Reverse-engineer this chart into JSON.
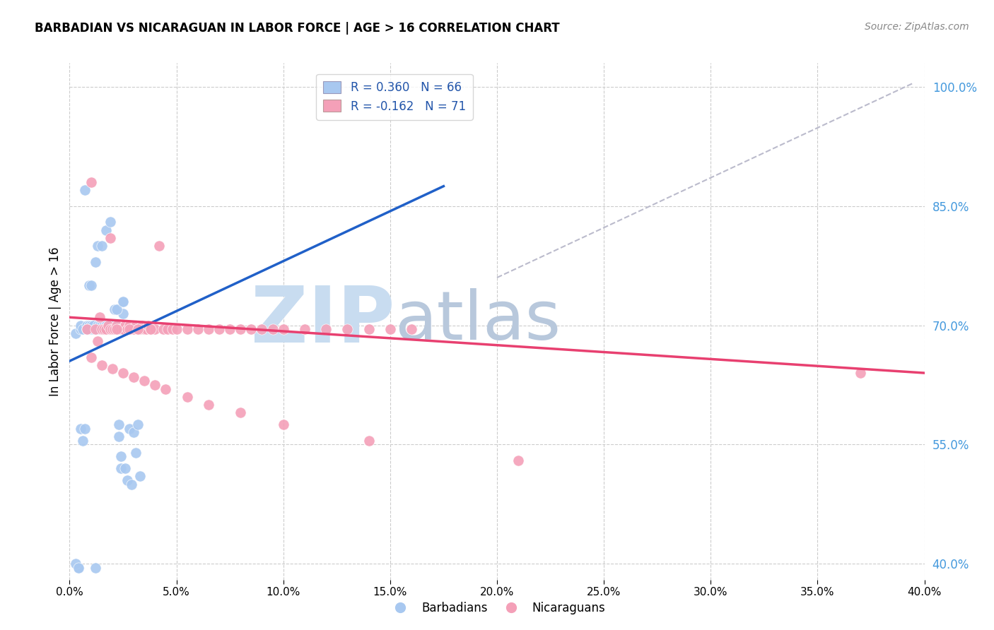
{
  "title": "BARBADIAN VS NICARAGUAN IN LABOR FORCE | AGE > 16 CORRELATION CHART",
  "source": "Source: ZipAtlas.com",
  "ylabel": "In Labor Force | Age > 16",
  "ylabel_ticks": [
    "100.0%",
    "85.0%",
    "70.0%",
    "55.0%",
    "40.0%"
  ],
  "ylabel_tick_vals": [
    1.0,
    0.85,
    0.7,
    0.55,
    0.4
  ],
  "xlim": [
    0.0,
    0.4
  ],
  "ylim": [
    0.38,
    1.03
  ],
  "legend_blue_label": "R = 0.360   N = 66",
  "legend_pink_label": "R = -0.162   N = 71",
  "barbadians_label": "Barbadians",
  "nicaraguans_label": "Nicaraguans",
  "blue_color": "#A8C8F0",
  "pink_color": "#F4A0B8",
  "blue_line_color": "#2060C8",
  "pink_line_color": "#E84070",
  "dashed_line_color": "#BBBBCC",
  "watermark_zip": "ZIP",
  "watermark_atlas": "atlas",
  "watermark_color_zip": "#C8DCF0",
  "watermark_color_atlas": "#B8C8DC",
  "bg_color": "#FFFFFF",
  "grid_color": "#CCCCCC",
  "blue_scatter_x": [
    0.003,
    0.004,
    0.005,
    0.005,
    0.006,
    0.007,
    0.008,
    0.008,
    0.009,
    0.009,
    0.01,
    0.01,
    0.011,
    0.011,
    0.012,
    0.012,
    0.013,
    0.013,
    0.014,
    0.014,
    0.015,
    0.015,
    0.016,
    0.016,
    0.017,
    0.017,
    0.018,
    0.018,
    0.019,
    0.019,
    0.02,
    0.02,
    0.021,
    0.021,
    0.022,
    0.022,
    0.023,
    0.023,
    0.024,
    0.024,
    0.025,
    0.025,
    0.026,
    0.027,
    0.028,
    0.029,
    0.03,
    0.031,
    0.032,
    0.033,
    0.003,
    0.004,
    0.005,
    0.006,
    0.007,
    0.008,
    0.009,
    0.01,
    0.012,
    0.013,
    0.015,
    0.017,
    0.019,
    0.021,
    0.022,
    0.025
  ],
  "blue_scatter_y": [
    0.69,
    0.395,
    0.695,
    0.7,
    0.695,
    0.87,
    0.7,
    0.695,
    0.695,
    0.7,
    0.695,
    0.7,
    0.695,
    0.7,
    0.695,
    0.395,
    0.7,
    0.695,
    0.695,
    0.7,
    0.7,
    0.695,
    0.7,
    0.695,
    0.7,
    0.695,
    0.7,
    0.695,
    0.7,
    0.695,
    0.7,
    0.695,
    0.7,
    0.695,
    0.7,
    0.695,
    0.56,
    0.575,
    0.535,
    0.52,
    0.715,
    0.73,
    0.52,
    0.505,
    0.57,
    0.5,
    0.565,
    0.54,
    0.575,
    0.51,
    0.4,
    0.395,
    0.57,
    0.555,
    0.57,
    0.695,
    0.75,
    0.75,
    0.78,
    0.8,
    0.8,
    0.82,
    0.83,
    0.72,
    0.72,
    0.73
  ],
  "pink_scatter_x": [
    0.008,
    0.01,
    0.012,
    0.014,
    0.015,
    0.016,
    0.017,
    0.018,
    0.019,
    0.02,
    0.021,
    0.022,
    0.023,
    0.024,
    0.025,
    0.026,
    0.027,
    0.028,
    0.029,
    0.03,
    0.031,
    0.032,
    0.033,
    0.034,
    0.035,
    0.036,
    0.037,
    0.038,
    0.04,
    0.042,
    0.044,
    0.046,
    0.048,
    0.05,
    0.055,
    0.06,
    0.065,
    0.07,
    0.075,
    0.08,
    0.085,
    0.09,
    0.095,
    0.1,
    0.11,
    0.12,
    0.13,
    0.14,
    0.15,
    0.16,
    0.01,
    0.015,
    0.02,
    0.025,
    0.03,
    0.035,
    0.04,
    0.045,
    0.055,
    0.065,
    0.08,
    0.1,
    0.14,
    0.013,
    0.019,
    0.022,
    0.028,
    0.032,
    0.038,
    0.21,
    0.37
  ],
  "pink_scatter_y": [
    0.695,
    0.88,
    0.695,
    0.71,
    0.695,
    0.695,
    0.695,
    0.7,
    0.695,
    0.695,
    0.695,
    0.7,
    0.695,
    0.695,
    0.695,
    0.7,
    0.695,
    0.7,
    0.695,
    0.695,
    0.7,
    0.695,
    0.695,
    0.7,
    0.695,
    0.695,
    0.7,
    0.695,
    0.695,
    0.8,
    0.695,
    0.695,
    0.695,
    0.695,
    0.695,
    0.695,
    0.695,
    0.695,
    0.695,
    0.695,
    0.695,
    0.695,
    0.695,
    0.695,
    0.695,
    0.695,
    0.695,
    0.695,
    0.695,
    0.695,
    0.66,
    0.65,
    0.645,
    0.64,
    0.635,
    0.63,
    0.625,
    0.62,
    0.61,
    0.6,
    0.59,
    0.575,
    0.555,
    0.68,
    0.81,
    0.695,
    0.695,
    0.695,
    0.695,
    0.53,
    0.64
  ],
  "blue_line_x": [
    0.0,
    0.175
  ],
  "blue_line_y": [
    0.655,
    0.875
  ],
  "pink_line_x": [
    0.0,
    0.4
  ],
  "pink_line_y": [
    0.71,
    0.64
  ],
  "dashed_line_x": [
    0.2,
    0.395
  ],
  "dashed_line_y": [
    0.76,
    1.005
  ]
}
